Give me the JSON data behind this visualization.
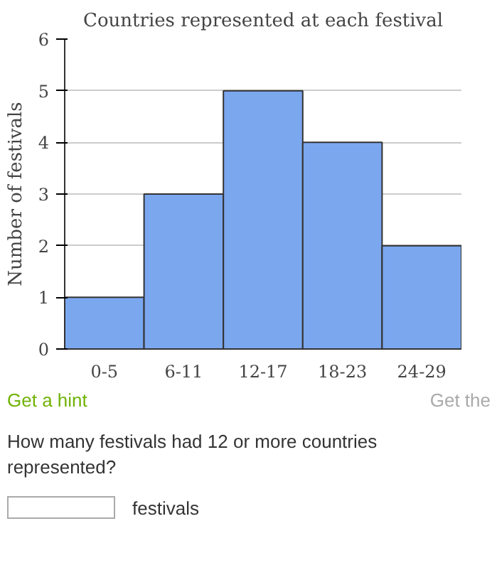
{
  "chart_data": {
    "type": "bar",
    "title": "Countries represented at each festival",
    "ylabel": "Number of festivals",
    "categories": [
      "0-5",
      "6-11",
      "12-17",
      "18-23",
      "24-29"
    ],
    "values": [
      1,
      3,
      5,
      4,
      2
    ],
    "color": "#7ba7ef",
    "ylim": [
      0,
      6
    ],
    "yticks": [
      0,
      1,
      2,
      3,
      4,
      5,
      6
    ],
    "grid": "y",
    "annotations": [
      "Get a hint",
      "Get the",
      "How many festivals had 12 or more countries represented?",
      "festivals"
    ]
  }
}
